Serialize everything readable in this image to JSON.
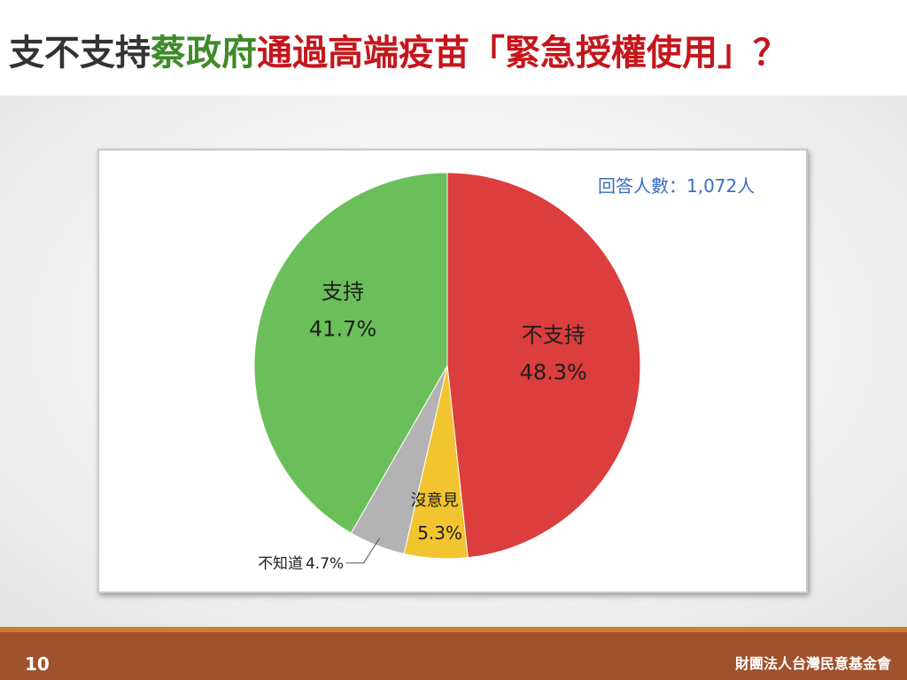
{
  "title": {
    "part1": "支不支持",
    "part2": "蔡政府",
    "part3": "通過高端疫苗「緊急授權使用」？",
    "colors": {
      "part1": "#333333",
      "part2": "#3f8a2a",
      "part3": "#c4161c"
    }
  },
  "respondents": "回答人數：1,072人",
  "chart_data": {
    "type": "pie",
    "slices": [
      {
        "label": "不支持",
        "value": 48.3,
        "value_text": "48.3%",
        "color": "#dc3d3d"
      },
      {
        "label": "沒意見",
        "value": 5.3,
        "value_text": "5.3%",
        "color": "#f2c530"
      },
      {
        "label": "不知道",
        "value": 4.7,
        "value_text": "4.7%",
        "color": "#b3b3b3"
      },
      {
        "label": "支持",
        "value": 41.7,
        "value_text": "41.7%",
        "color": "#6bbf5a"
      }
    ],
    "start": "12 o'clock, clockwise"
  },
  "footer": {
    "page_number": "10",
    "organization": "財團法人台灣民意基金會"
  }
}
